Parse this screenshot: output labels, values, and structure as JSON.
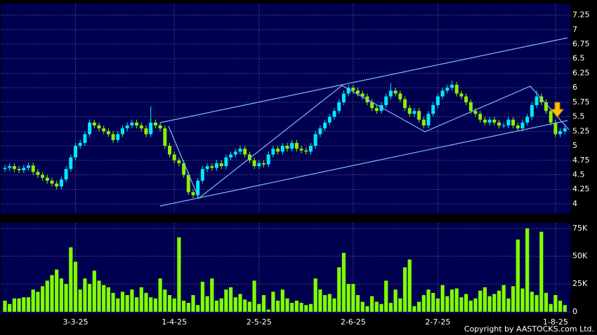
{
  "chart_data": [
    {
      "type": "candlestick",
      "up_color": "#00e8ff",
      "down_color": "#8cf000",
      "categories": [
        null,
        null,
        null,
        null,
        null,
        null,
        null,
        null,
        null,
        null,
        null,
        null,
        null,
        null,
        null,
        "3-3-25",
        null,
        null,
        null,
        null,
        null,
        null,
        null,
        null,
        null,
        null,
        null,
        null,
        null,
        null,
        null,
        null,
        null,
        null,
        null,
        null,
        "1-4-25",
        null,
        null,
        null,
        null,
        null,
        null,
        null,
        null,
        null,
        null,
        null,
        null,
        null,
        null,
        null,
        null,
        null,
        "2-5-25",
        null,
        null,
        null,
        null,
        null,
        null,
        null,
        null,
        null,
        null,
        null,
        null,
        null,
        null,
        null,
        null,
        null,
        null,
        null,
        "2-6-25",
        null,
        null,
        null,
        null,
        null,
        null,
        null,
        null,
        null,
        null,
        null,
        null,
        null,
        null,
        null,
        null,
        null,
        "2-7-25",
        null,
        null,
        null,
        null,
        null,
        null,
        null,
        null,
        null,
        null,
        null,
        null,
        null,
        null,
        null,
        null,
        null,
        null,
        null,
        null,
        null,
        null,
        null,
        null,
        "1-8-25",
        null,
        null
      ],
      "open": [
        4.6,
        4.62,
        4.65,
        4.6,
        4.58,
        4.62,
        4.66,
        4.55,
        4.5,
        4.45,
        4.4,
        4.35,
        4.3,
        4.42,
        4.6,
        4.8,
        5.0,
        5.05,
        5.2,
        5.4,
        5.35,
        5.3,
        5.25,
        5.2,
        5.1,
        5.2,
        5.3,
        5.35,
        5.4,
        5.35,
        5.3,
        5.2,
        5.4,
        5.35,
        5.3,
        5.0,
        4.85,
        4.75,
        4.7,
        4.5,
        4.2,
        4.15,
        4.4,
        4.6,
        4.65,
        4.62,
        4.7,
        4.65,
        4.8,
        4.85,
        4.9,
        4.95,
        4.85,
        4.75,
        4.65,
        4.7,
        4.68,
        4.85,
        4.95,
        4.9,
        5.0,
        4.95,
        5.05,
        4.95,
        4.92,
        4.9,
        5.0,
        5.2,
        5.3,
        5.4,
        5.5,
        5.6,
        5.75,
        5.9,
        6.0,
        5.95,
        5.9,
        5.85,
        5.75,
        5.65,
        5.6,
        5.7,
        5.85,
        5.95,
        5.9,
        5.8,
        5.65,
        5.55,
        5.6,
        5.45,
        5.35,
        5.55,
        5.7,
        5.85,
        5.95,
        6.0,
        6.05,
        5.9,
        5.85,
        5.75,
        5.6,
        5.55,
        5.45,
        5.4,
        5.45,
        5.4,
        5.35,
        5.35,
        5.45,
        5.35,
        5.3,
        5.4,
        5.5,
        5.7,
        5.85,
        5.75,
        5.6,
        5.4,
        5.2,
        5.25
      ],
      "high": [
        4.67,
        4.7,
        4.7,
        4.65,
        4.67,
        4.71,
        4.71,
        4.6,
        4.55,
        4.5,
        4.45,
        4.4,
        4.47,
        4.65,
        4.85,
        5.05,
        5.1,
        5.25,
        5.45,
        5.45,
        5.4,
        5.35,
        5.3,
        5.25,
        5.25,
        5.35,
        5.4,
        5.45,
        5.45,
        5.4,
        5.35,
        5.68,
        5.45,
        5.4,
        5.35,
        5.05,
        4.9,
        4.8,
        4.75,
        4.55,
        4.25,
        4.45,
        4.65,
        4.7,
        4.7,
        4.75,
        4.75,
        4.85,
        4.9,
        4.95,
        5.0,
        5.0,
        4.9,
        4.8,
        4.75,
        4.75,
        4.9,
        5.0,
        5.0,
        5.05,
        5.05,
        5.1,
        5.1,
        5.0,
        4.97,
        5.05,
        5.25,
        5.35,
        5.45,
        5.55,
        5.65,
        5.8,
        5.95,
        6.05,
        6.05,
        6.0,
        5.95,
        5.9,
        5.8,
        5.7,
        5.75,
        5.9,
        6.08,
        6.0,
        5.95,
        5.85,
        5.7,
        5.65,
        5.65,
        5.5,
        5.6,
        5.75,
        5.9,
        6.0,
        6.05,
        6.12,
        6.1,
        5.95,
        5.9,
        5.8,
        5.65,
        5.6,
        5.5,
        5.5,
        5.5,
        5.45,
        5.4,
        5.5,
        5.5,
        5.4,
        5.45,
        5.55,
        5.75,
        5.95,
        5.9,
        5.8,
        5.65,
        5.45,
        5.3,
        5.35
      ],
      "low": [
        4.55,
        4.57,
        4.55,
        4.53,
        4.53,
        4.57,
        4.5,
        4.45,
        4.4,
        4.35,
        4.3,
        4.25,
        4.25,
        4.37,
        4.55,
        4.75,
        4.95,
        5.0,
        5.15,
        5.3,
        5.25,
        5.2,
        5.15,
        5.05,
        5.05,
        5.15,
        5.25,
        5.3,
        5.3,
        5.25,
        5.15,
        5.15,
        5.3,
        5.25,
        4.95,
        4.8,
        4.7,
        4.65,
        4.45,
        4.15,
        4.1,
        4.1,
        4.35,
        4.55,
        4.57,
        4.57,
        4.6,
        4.6,
        4.75,
        4.8,
        4.85,
        4.8,
        4.7,
        4.6,
        4.6,
        4.63,
        4.63,
        4.8,
        4.85,
        4.85,
        4.9,
        4.9,
        4.9,
        4.87,
        4.85,
        4.85,
        4.95,
        5.15,
        5.25,
        5.35,
        5.45,
        5.55,
        5.7,
        5.85,
        5.9,
        5.85,
        5.8,
        5.7,
        5.6,
        5.55,
        5.55,
        5.65,
        5.8,
        5.85,
        5.75,
        5.6,
        5.5,
        5.5,
        5.4,
        5.3,
        5.3,
        5.5,
        5.65,
        5.8,
        5.9,
        5.95,
        5.85,
        5.8,
        5.7,
        5.55,
        5.5,
        5.4,
        5.35,
        5.35,
        5.35,
        5.3,
        5.3,
        5.3,
        5.3,
        5.25,
        5.25,
        5.35,
        5.45,
        5.65,
        5.7,
        5.55,
        5.35,
        5.15,
        5.15,
        5.2
      ],
      "close": [
        4.62,
        4.65,
        4.6,
        4.58,
        4.62,
        4.66,
        4.55,
        4.5,
        4.45,
        4.4,
        4.35,
        4.3,
        4.42,
        4.6,
        4.8,
        5.0,
        5.05,
        5.2,
        5.4,
        5.35,
        5.3,
        5.25,
        5.2,
        5.1,
        5.2,
        5.3,
        5.35,
        5.4,
        5.35,
        5.3,
        5.2,
        5.4,
        5.35,
        5.3,
        5.0,
        4.85,
        4.75,
        4.7,
        4.5,
        4.2,
        4.15,
        4.4,
        4.6,
        4.65,
        4.62,
        4.7,
        4.65,
        4.8,
        4.85,
        4.9,
        4.95,
        4.85,
        4.75,
        4.65,
        4.7,
        4.68,
        4.85,
        4.95,
        4.9,
        5.0,
        4.95,
        5.05,
        4.95,
        4.92,
        4.9,
        5.0,
        5.2,
        5.3,
        5.4,
        5.5,
        5.6,
        5.75,
        5.9,
        6.0,
        5.95,
        5.9,
        5.85,
        5.75,
        5.65,
        5.6,
        5.7,
        5.85,
        5.95,
        5.9,
        5.8,
        5.65,
        5.55,
        5.6,
        5.45,
        5.35,
        5.55,
        5.7,
        5.85,
        5.95,
        6.0,
        6.05,
        5.9,
        5.85,
        5.75,
        5.6,
        5.55,
        5.45,
        5.4,
        5.45,
        5.4,
        5.35,
        5.35,
        5.45,
        5.35,
        5.3,
        5.4,
        5.5,
        5.7,
        5.85,
        5.75,
        5.6,
        5.4,
        5.2,
        5.25,
        5.3
      ],
      "ylim": [
        3.83,
        7.45
      ],
      "yticks": [
        4,
        4.25,
        4.5,
        4.75,
        5,
        5.25,
        5.5,
        5.75,
        6,
        6.25,
        6.5,
        6.75,
        7,
        7.25
      ],
      "grid": true
    },
    {
      "type": "bar",
      "color": "#80ff00",
      "values": [
        10000,
        7000,
        12000,
        12000,
        13000,
        13000,
        20000,
        18000,
        23000,
        28000,
        33000,
        38000,
        30000,
        25000,
        58000,
        45000,
        20000,
        30000,
        25000,
        37000,
        28000,
        24000,
        22000,
        17000,
        12000,
        18000,
        15000,
        20000,
        13000,
        22000,
        17000,
        13000,
        12000,
        30000,
        20000,
        15000,
        12000,
        67000,
        10000,
        8000,
        15000,
        6000,
        27000,
        14000,
        30000,
        10000,
        12000,
        20000,
        22000,
        13000,
        16000,
        11000,
        9000,
        28000,
        7000,
        15000,
        2000,
        18000,
        10000,
        20000,
        12000,
        8000,
        10000,
        8000,
        6000,
        7000,
        30000,
        20000,
        15000,
        16000,
        12000,
        40000,
        53000,
        25000,
        25000,
        15000,
        9000,
        5000,
        14000,
        9000,
        7000,
        28000,
        8000,
        20000,
        12000,
        40000,
        47000,
        5000,
        9000,
        15000,
        20000,
        17000,
        12000,
        24000,
        14000,
        20000,
        21000,
        13000,
        16000,
        10000,
        12000,
        19000,
        22000,
        14000,
        16000,
        19000,
        24000,
        12000,
        23000,
        65000,
        21000,
        75000,
        18000,
        15000,
        72000,
        17000,
        7000,
        15000,
        10000,
        6000
      ],
      "ylim": [
        -2000,
        80000
      ],
      "yticks": [
        0,
        {
          "value": 25000,
          "label": "25K"
        },
        {
          "value": 50000,
          "label": "50K"
        },
        {
          "value": 75000,
          "label": "75K"
        }
      ],
      "grid": true
    }
  ],
  "copyright": "Copyright by AASTOCKS.com Ltd."
}
